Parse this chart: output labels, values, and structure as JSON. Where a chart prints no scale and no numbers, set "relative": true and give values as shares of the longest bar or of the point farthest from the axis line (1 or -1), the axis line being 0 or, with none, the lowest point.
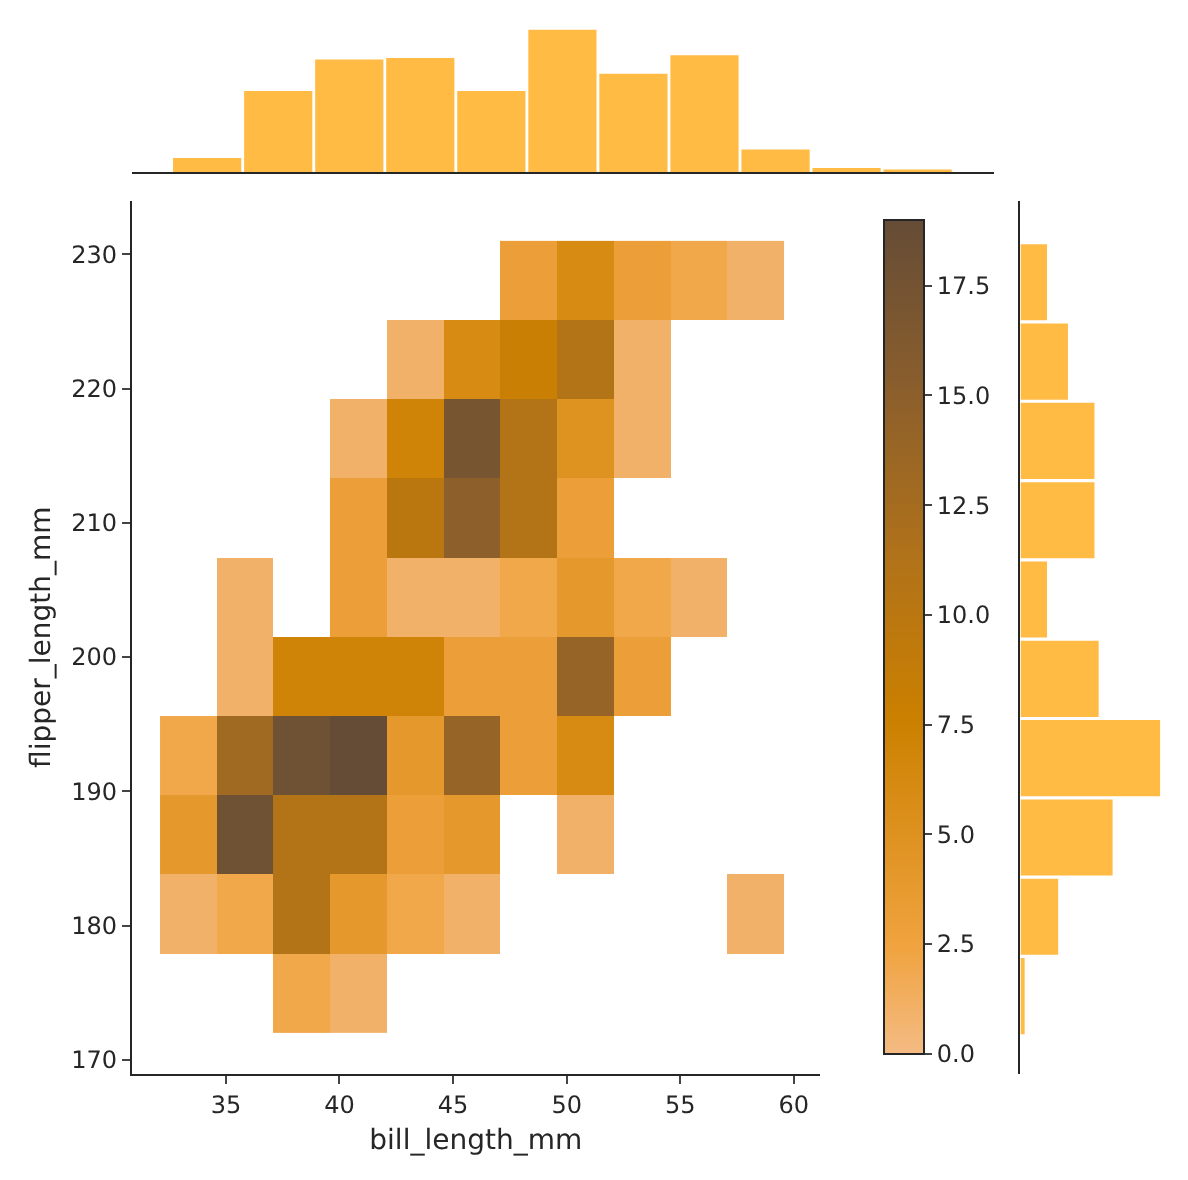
{
  "chart_data": [
    {
      "type": "bar",
      "relative": true,
      "categories": [
        null,
        null,
        null,
        null,
        null,
        null,
        null,
        null,
        null,
        null,
        null
      ],
      "values": [
        0.1,
        0.57,
        0.79,
        0.8,
        0.57,
        1,
        0.69,
        0.82,
        0.16,
        0.03,
        0.02
      ],
      "color": "#ffbb44"
    },
    {
      "type": "heatmap",
      "xlabel": "bill_length_mm",
      "ylabel": "flipper_length_mm",
      "x": [
        33.35,
        35.85,
        38.35,
        40.85,
        43.35,
        45.85,
        48.35,
        50.85,
        53.35,
        55.85,
        58.35
      ],
      "y": [
        228.05,
        222.15,
        216.25,
        210.35,
        204.45,
        198.55,
        192.65,
        186.75,
        180.85,
        174.95
      ],
      "cells": [
        [
          null,
          null,
          null,
          null,
          null,
          null,
          3,
          6,
          3,
          2,
          1
        ],
        [
          null,
          null,
          null,
          null,
          1,
          6,
          8,
          11,
          1,
          null,
          null
        ],
        [
          null,
          null,
          null,
          1,
          7,
          17,
          11,
          5,
          1,
          null,
          null
        ],
        [
          null,
          null,
          null,
          3,
          10,
          15,
          11,
          3,
          null,
          null,
          null
        ],
        [
          null,
          1,
          null,
          3,
          1,
          1,
          2,
          4,
          2,
          1,
          null
        ],
        [
          null,
          1,
          7,
          7,
          7,
          3,
          3,
          14,
          3,
          null,
          null
        ],
        [
          2,
          13,
          18,
          19,
          4,
          14,
          3,
          6,
          null,
          null,
          null
        ],
        [
          4,
          18,
          11,
          11,
          3,
          4,
          null,
          1,
          null,
          null,
          null
        ],
        [
          1,
          2,
          11,
          4,
          2,
          1,
          null,
          null,
          null,
          null,
          1
        ],
        [
          null,
          null,
          2,
          1,
          null,
          null,
          null,
          null,
          null,
          null,
          null
        ]
      ],
      "clim": [
        0,
        19
      ],
      "cticks": [
        {
          "value": 0,
          "label": "0.0"
        },
        {
          "value": 2.5,
          "label": "2.5"
        },
        {
          "value": 5,
          "label": "5.0"
        },
        {
          "value": 7.5,
          "label": "7.5"
        },
        {
          "value": 10,
          "label": "10.0"
        },
        {
          "value": 12.5,
          "label": "12.5"
        },
        {
          "value": 15,
          "label": "15.0"
        },
        {
          "value": 17.5,
          "label": "17.5"
        }
      ],
      "xlim": [
        30.86,
        61.14
      ],
      "xticks": [
        35,
        40,
        45,
        50,
        55,
        60
      ],
      "ylim": [
        168.96,
        234.0
      ],
      "yticks": [
        170,
        180,
        190,
        200,
        210,
        220,
        230
      ]
    },
    {
      "type": "bar",
      "orientation": "horizontal",
      "relative": true,
      "categories": [
        null,
        null,
        null,
        null,
        null,
        null,
        null,
        null,
        null,
        null
      ],
      "values": [
        0.19,
        0.34,
        0.53,
        0.53,
        0.19,
        0.56,
        1,
        0.66,
        0.27,
        0.03
      ],
      "color": "#ffbb44"
    }
  ]
}
